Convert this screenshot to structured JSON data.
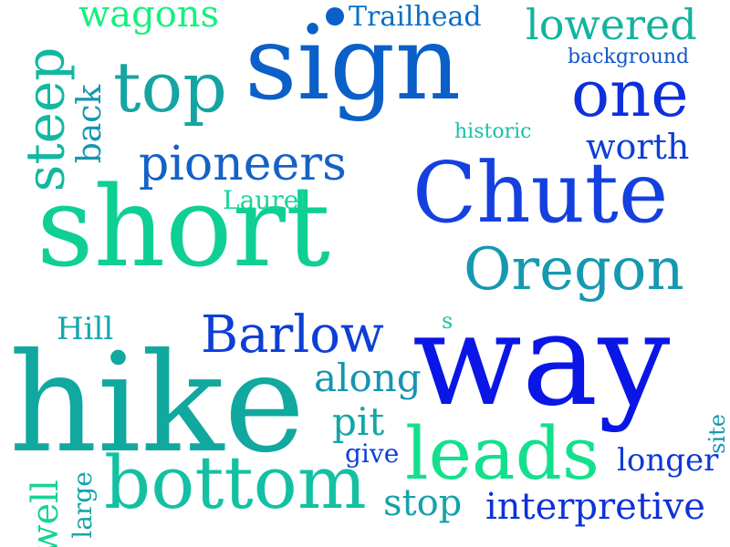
{
  "words": [
    {
      "text": "sign",
      "color": "#0b5fc8"
    },
    {
      "text": "short",
      "color": "#0fcf94"
    },
    {
      "text": "Chute",
      "color": "#1540e0"
    },
    {
      "text": "hike",
      "color": "#10a89f"
    },
    {
      "text": "way",
      "color": "#0a16e6"
    },
    {
      "text": "bottom",
      "color": "#13c1a2"
    },
    {
      "text": "leads",
      "color": "#12e08c"
    },
    {
      "text": "top",
      "color": "#16a4a2"
    },
    {
      "text": "one",
      "color": "#0d2fde"
    },
    {
      "text": "steep",
      "color": "#12b8a0"
    },
    {
      "text": "pioneers",
      "color": "#1562c6"
    },
    {
      "text": "Oregon",
      "color": "#1599b0"
    },
    {
      "text": "Barlow",
      "color": "#0d3fd6"
    },
    {
      "text": "lowered",
      "color": "#14b39e"
    },
    {
      "text": "wagons",
      "color": "#16f07d"
    },
    {
      "text": "Trailhead",
      "color": "#0a6fc6"
    },
    {
      "text": "background",
      "color": "#1356c9"
    },
    {
      "text": "worth",
      "color": "#0d3ed6"
    },
    {
      "text": "historic",
      "color": "#16c1a8"
    },
    {
      "text": "back",
      "color": "#1596b0"
    },
    {
      "text": "Laurel",
      "color": "#18d497"
    },
    {
      "text": "Hill",
      "color": "#14a8ad"
    },
    {
      "text": "s",
      "color": "#18c4a6"
    },
    {
      "text": "along",
      "color": "#1594b0"
    },
    {
      "text": "pit",
      "color": "#13a6a6"
    },
    {
      "text": "give",
      "color": "#0d3fd8"
    },
    {
      "text": "longer",
      "color": "#0d37d8"
    },
    {
      "text": "site",
      "color": "#1595b0"
    },
    {
      "text": "well",
      "color": "#16d493"
    },
    {
      "text": "large",
      "color": "#14a4aa"
    },
    {
      "text": "stop",
      "color": "#14a3a8"
    },
    {
      "text": "interpretive",
      "color": "#0d33da"
    }
  ]
}
